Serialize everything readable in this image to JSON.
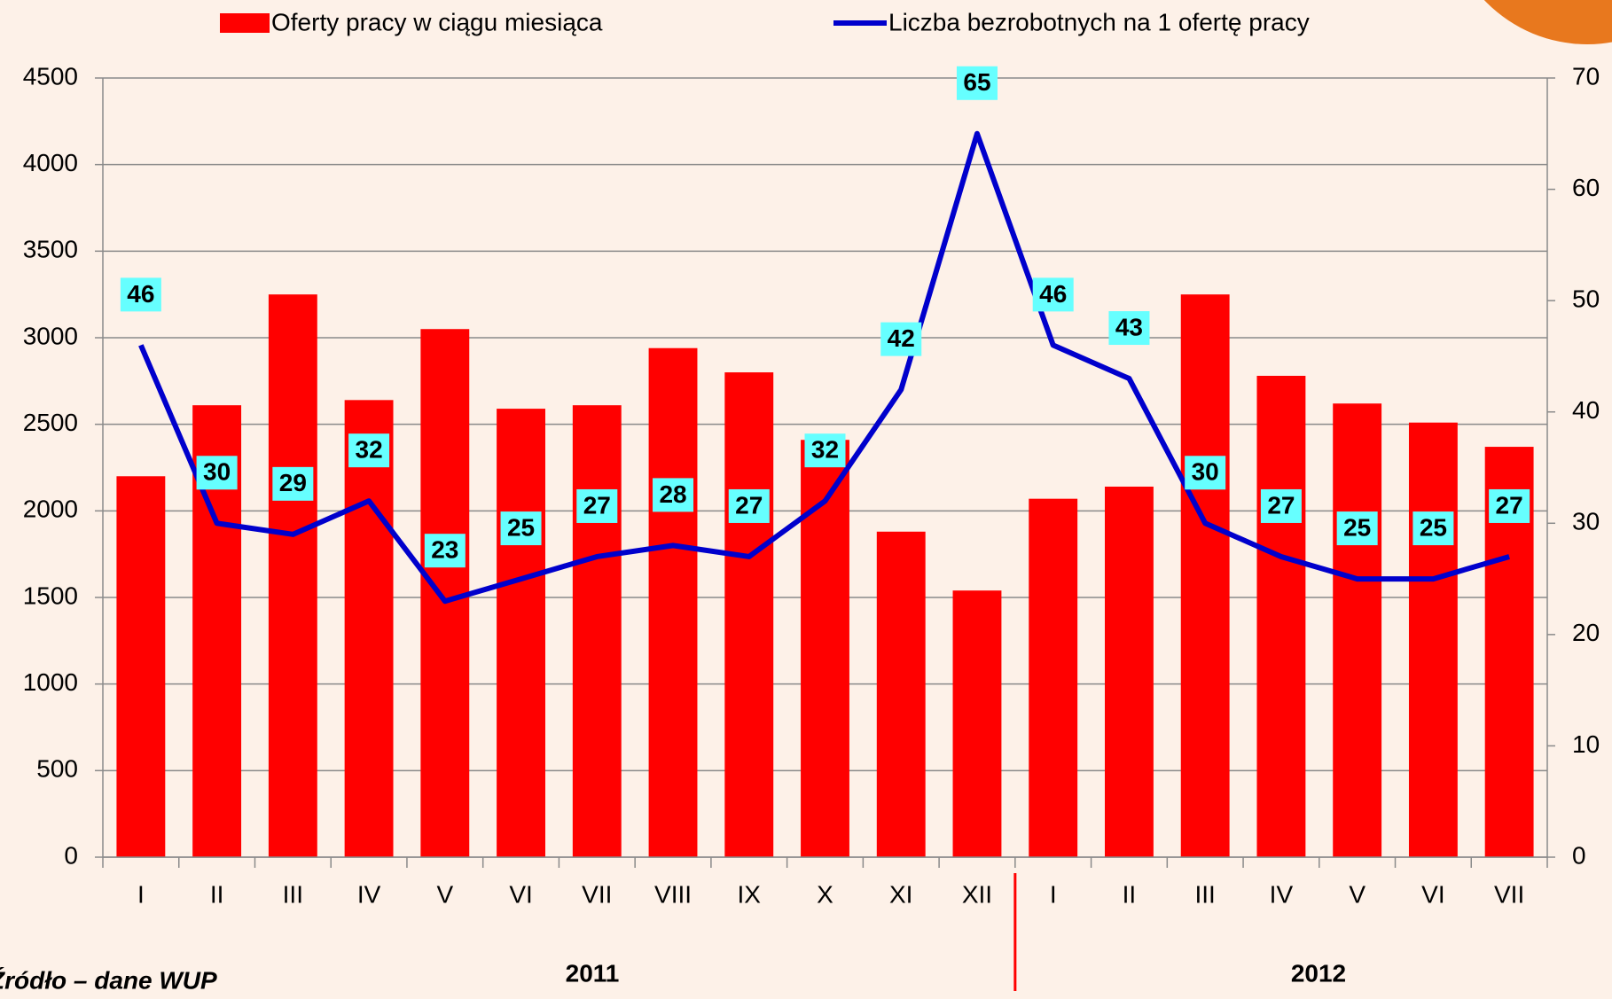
{
  "chart_data": {
    "type": "bar_line",
    "categories": [
      "I",
      "II",
      "III",
      "IV",
      "V",
      "VI",
      "VII",
      "VIII",
      "IX",
      "X",
      "XI",
      "XII",
      "I",
      "II",
      "III",
      "IV",
      "V",
      "VI",
      "VII"
    ],
    "series": [
      {
        "name": "Oferty pracy w ciągu miesiąca",
        "color": "#ff0000",
        "type": "bar",
        "values": [
          2200,
          2610,
          3250,
          2640,
          3050,
          2590,
          2610,
          2940,
          2800,
          2410,
          1880,
          1540,
          2070,
          2140,
          3250,
          2780,
          2620,
          2510,
          2370
        ]
      },
      {
        "name": "Liczba bezrobotnych na 1 ofertę pracy",
        "color": "#0000cc",
        "type": "line",
        "axis": "y2",
        "values": [
          46,
          30,
          29,
          32,
          23,
          25,
          27,
          28,
          27,
          32,
          42,
          65,
          46,
          43,
          30,
          27,
          25,
          25,
          27
        ]
      }
    ],
    "ylim": [
      0,
      4500
    ],
    "yticks": [
      0,
      500,
      1000,
      1500,
      2000,
      2500,
      3000,
      3500,
      4000,
      4500
    ],
    "y2lim": [
      0,
      70
    ],
    "y2ticks": [
      0,
      10,
      20,
      30,
      40,
      50,
      60,
      70
    ],
    "grid": true,
    "year_labels": [
      "2011",
      "2012"
    ],
    "source": "Źródło – dane WUP"
  }
}
